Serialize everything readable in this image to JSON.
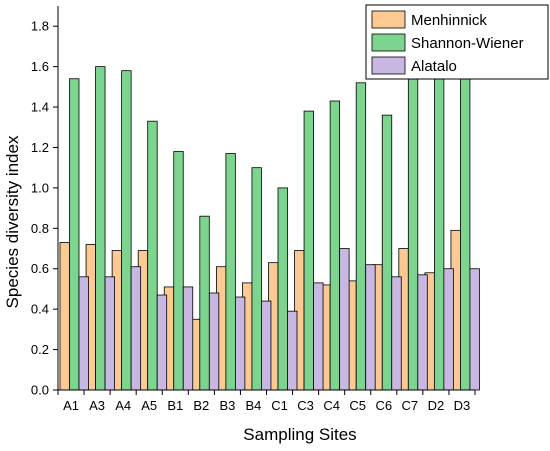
{
  "chart_data": {
    "type": "bar",
    "xlabel": "Sampling Sites",
    "ylabel": "Species diversity index",
    "ylim": [
      0,
      1.9
    ],
    "yticks": [
      0.0,
      0.2,
      0.4,
      0.6,
      0.8,
      1.0,
      1.2,
      1.4,
      1.6,
      1.8
    ],
    "categories": [
      "A1",
      "A3",
      "A4",
      "A5",
      "B1",
      "B2",
      "B3",
      "B4",
      "C1",
      "C3",
      "C4",
      "C5",
      "C6",
      "C7",
      "D2",
      "D3"
    ],
    "legend_position": "top-right",
    "grid": false,
    "series": [
      {
        "name": "Menhinnick",
        "color": "#fcc993",
        "values": [
          0.73,
          0.72,
          0.69,
          0.69,
          0.51,
          0.35,
          0.61,
          0.53,
          0.63,
          0.69,
          0.52,
          0.54,
          0.62,
          0.7,
          0.58,
          0.79
        ]
      },
      {
        "name": "Shannon-Wiener",
        "color": "#7dd48e",
        "values": [
          1.54,
          1.6,
          1.58,
          1.33,
          1.18,
          0.86,
          1.17,
          1.1,
          1.0,
          1.38,
          1.43,
          1.52,
          1.36,
          1.59,
          1.54,
          1.73
        ]
      },
      {
        "name": "Alatalo",
        "color": "#c8b7e0",
        "values": [
          0.56,
          0.56,
          0.61,
          0.47,
          0.51,
          0.48,
          0.46,
          0.44,
          0.39,
          0.53,
          0.7,
          0.62,
          0.56,
          0.57,
          0.6,
          0.6
        ]
      }
    ]
  }
}
